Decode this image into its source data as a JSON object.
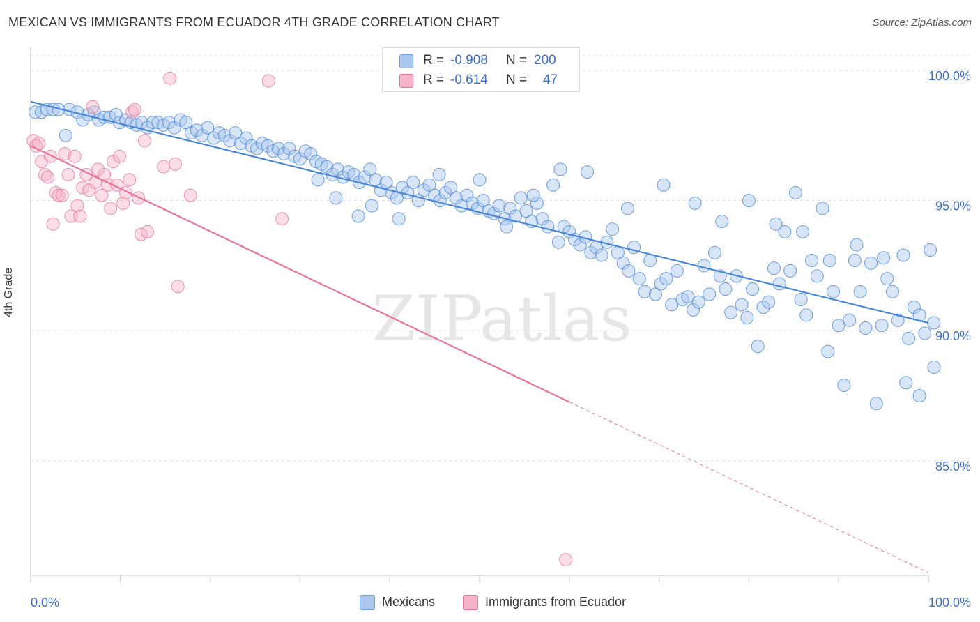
{
  "title": "MEXICAN VS IMMIGRANTS FROM ECUADOR 4TH GRADE CORRELATION CHART",
  "source": "Source: ZipAtlas.com",
  "watermark": "ZIPatlas",
  "stats": [
    {
      "r_label": "R =",
      "r_value": "-0.908",
      "n_label": "N =",
      "n_value": "200",
      "color": "#a9c6ee"
    },
    {
      "r_label": "R =",
      "r_value": "-0.614",
      "n_label": "N =",
      "n_value": "47",
      "color": "#f5b3c8"
    }
  ],
  "legend": [
    {
      "label": "Mexicans",
      "color": "#a9c6ee"
    },
    {
      "label": "Immigrants from Ecuador",
      "color": "#f5b3c8"
    }
  ],
  "colors": {
    "blue": "#4a86d8",
    "blue_fill": "#a9c6ee",
    "pink": "#e8739a",
    "pink_fill": "#f5b3c8",
    "tick_label": "#3d6fc9"
  },
  "chart_data": {
    "type": "scatter",
    "title": "MEXICAN VS IMMIGRANTS FROM ECUADOR 4TH GRADE CORRELATION CHART",
    "xlabel": "",
    "ylabel": "4th Grade",
    "xlim": [
      0,
      100
    ],
    "ylim": [
      80.6,
      101.1
    ],
    "x_tick_labels": [
      "0.0%",
      "100.0%"
    ],
    "y_ticks": [
      85,
      90,
      95,
      100
    ],
    "y_tick_labels": [
      "85.0%",
      "90.0%",
      "95.0%",
      "100.0%"
    ],
    "grid": true,
    "legend_position": "bottom-center",
    "series": [
      {
        "name": "Mexicans",
        "color": "#4a86d8",
        "trend": {
          "x": [
            0,
            100
          ],
          "y": [
            98.8,
            90.3
          ],
          "solid_to": 100
        },
        "points": [
          [
            0.5,
            98.4
          ],
          [
            1.2,
            98.4
          ],
          [
            1.8,
            98.5
          ],
          [
            2.5,
            98.5
          ],
          [
            3.1,
            98.5
          ],
          [
            3.9,
            97.5
          ],
          [
            4.3,
            98.5
          ],
          [
            5.2,
            98.4
          ],
          [
            5.8,
            98.1
          ],
          [
            6.4,
            98.3
          ],
          [
            7.1,
            98.4
          ],
          [
            7.6,
            98.1
          ],
          [
            8.2,
            98.2
          ],
          [
            8.8,
            98.2
          ],
          [
            9.5,
            98.3
          ],
          [
            9.9,
            98.0
          ],
          [
            10.6,
            98.1
          ],
          [
            11.2,
            98.0
          ],
          [
            11.8,
            97.9
          ],
          [
            12.4,
            98.0
          ],
          [
            13.0,
            97.8
          ],
          [
            13.6,
            98.0
          ],
          [
            14.2,
            98.0
          ],
          [
            14.8,
            97.9
          ],
          [
            15.4,
            98.0
          ],
          [
            16.0,
            97.8
          ],
          [
            16.7,
            98.1
          ],
          [
            17.3,
            98.0
          ],
          [
            17.9,
            97.6
          ],
          [
            18.5,
            97.7
          ],
          [
            19.1,
            97.5
          ],
          [
            19.7,
            97.8
          ],
          [
            20.4,
            97.4
          ],
          [
            21.0,
            97.6
          ],
          [
            21.6,
            97.5
          ],
          [
            22.2,
            97.3
          ],
          [
            22.8,
            97.6
          ],
          [
            23.4,
            97.2
          ],
          [
            24.0,
            97.4
          ],
          [
            24.6,
            97.1
          ],
          [
            25.2,
            97.0
          ],
          [
            25.8,
            97.2
          ],
          [
            26.4,
            97.1
          ],
          [
            27.0,
            96.9
          ],
          [
            27.6,
            97.0
          ],
          [
            28.2,
            96.8
          ],
          [
            28.8,
            97.0
          ],
          [
            29.4,
            96.7
          ],
          [
            30.0,
            96.6
          ],
          [
            30.6,
            96.9
          ],
          [
            31.2,
            96.8
          ],
          [
            31.8,
            96.5
          ],
          [
            32.4,
            96.4
          ],
          [
            33.0,
            96.3
          ],
          [
            33.6,
            96.0
          ],
          [
            34.2,
            96.2
          ],
          [
            34.8,
            95.9
          ],
          [
            35.4,
            96.1
          ],
          [
            36.0,
            96.0
          ],
          [
            36.6,
            95.7
          ],
          [
            37.2,
            95.9
          ],
          [
            37.8,
            96.2
          ],
          [
            38.4,
            95.8
          ],
          [
            39.0,
            95.4
          ],
          [
            39.6,
            95.7
          ],
          [
            40.2,
            95.3
          ],
          [
            40.8,
            95.1
          ],
          [
            41.4,
            95.5
          ],
          [
            42.0,
            95.3
          ],
          [
            42.6,
            95.7
          ],
          [
            43.2,
            95.0
          ],
          [
            43.8,
            95.4
          ],
          [
            44.4,
            95.6
          ],
          [
            45.0,
            95.2
          ],
          [
            45.6,
            95.0
          ],
          [
            46.2,
            95.3
          ],
          [
            46.8,
            95.5
          ],
          [
            47.4,
            95.1
          ],
          [
            48.0,
            94.8
          ],
          [
            48.6,
            95.2
          ],
          [
            49.2,
            94.9
          ],
          [
            49.8,
            94.7
          ],
          [
            50.4,
            95.0
          ],
          [
            51.0,
            94.6
          ],
          [
            51.6,
            94.5
          ],
          [
            52.2,
            94.8
          ],
          [
            52.8,
            94.3
          ],
          [
            53.4,
            94.7
          ],
          [
            54.0,
            94.4
          ],
          [
            54.6,
            95.1
          ],
          [
            55.2,
            94.6
          ],
          [
            55.8,
            94.2
          ],
          [
            56.4,
            94.9
          ],
          [
            57.0,
            94.3
          ],
          [
            57.6,
            94.0
          ],
          [
            58.2,
            95.6
          ],
          [
            58.8,
            93.4
          ],
          [
            59.4,
            94.0
          ],
          [
            60.0,
            93.8
          ],
          [
            60.6,
            93.5
          ],
          [
            61.2,
            93.3
          ],
          [
            61.8,
            93.6
          ],
          [
            62.4,
            93.0
          ],
          [
            63.0,
            93.2
          ],
          [
            63.6,
            92.9
          ],
          [
            64.2,
            93.4
          ],
          [
            64.8,
            93.9
          ],
          [
            65.4,
            93.0
          ],
          [
            66.0,
            92.6
          ],
          [
            66.6,
            92.3
          ],
          [
            67.2,
            93.2
          ],
          [
            67.8,
            92.0
          ],
          [
            68.4,
            91.5
          ],
          [
            69.0,
            92.7
          ],
          [
            69.6,
            91.4
          ],
          [
            70.2,
            91.8
          ],
          [
            70.8,
            92.0
          ],
          [
            71.4,
            91.0
          ],
          [
            72.0,
            92.3
          ],
          [
            72.6,
            91.2
          ],
          [
            73.2,
            91.3
          ],
          [
            73.8,
            90.8
          ],
          [
            74.4,
            91.1
          ],
          [
            75.0,
            92.5
          ],
          [
            75.6,
            91.4
          ],
          [
            76.2,
            93.0
          ],
          [
            76.8,
            92.1
          ],
          [
            77.4,
            91.6
          ],
          [
            78.0,
            90.7
          ],
          [
            78.6,
            92.1
          ],
          [
            79.2,
            91.0
          ],
          [
            79.8,
            90.5
          ],
          [
            80.4,
            91.6
          ],
          [
            81.0,
            89.4
          ],
          [
            81.6,
            90.9
          ],
          [
            82.2,
            91.1
          ],
          [
            82.8,
            92.4
          ],
          [
            83.4,
            91.8
          ],
          [
            84.0,
            93.8
          ],
          [
            84.6,
            92.3
          ],
          [
            85.2,
            95.3
          ],
          [
            85.8,
            91.2
          ],
          [
            86.4,
            90.6
          ],
          [
            87.0,
            92.7
          ],
          [
            87.6,
            92.1
          ],
          [
            88.2,
            94.7
          ],
          [
            88.8,
            89.2
          ],
          [
            89.4,
            91.5
          ],
          [
            90.0,
            90.2
          ],
          [
            90.6,
            87.9
          ],
          [
            91.2,
            90.4
          ],
          [
            91.8,
            92.7
          ],
          [
            92.4,
            91.5
          ],
          [
            93.0,
            90.1
          ],
          [
            93.6,
            92.6
          ],
          [
            94.2,
            87.2
          ],
          [
            94.8,
            90.2
          ],
          [
            95.4,
            92.0
          ],
          [
            96.0,
            91.5
          ],
          [
            96.6,
            90.4
          ],
          [
            97.2,
            92.9
          ],
          [
            97.8,
            89.7
          ],
          [
            98.4,
            90.9
          ],
          [
            99.0,
            90.6
          ],
          [
            99.6,
            89.9
          ],
          [
            100.2,
            93.1
          ],
          [
            100.6,
            90.3
          ],
          [
            32.0,
            95.8
          ],
          [
            34.0,
            95.1
          ],
          [
            36.5,
            94.4
          ],
          [
            38.0,
            94.8
          ],
          [
            41.0,
            94.3
          ],
          [
            45.5,
            96.0
          ],
          [
            50.0,
            95.8
          ],
          [
            53.0,
            94.0
          ],
          [
            56.0,
            95.2
          ],
          [
            59.0,
            96.2
          ],
          [
            62.0,
            96.1
          ],
          [
            66.5,
            94.7
          ],
          [
            70.5,
            95.6
          ],
          [
            74.0,
            94.9
          ],
          [
            77.0,
            94.2
          ],
          [
            80.0,
            95.0
          ],
          [
            83.0,
            94.1
          ],
          [
            86.0,
            93.8
          ],
          [
            89.0,
            92.7
          ],
          [
            92.0,
            93.3
          ],
          [
            95.0,
            92.8
          ],
          [
            97.5,
            88.0
          ],
          [
            99.0,
            87.5
          ],
          [
            102.0,
            88.6
          ]
        ]
      },
      {
        "name": "Immigrants from Ecuador",
        "color": "#e8739a",
        "trend": {
          "x": [
            0,
            100
          ],
          "y": [
            97.1,
            80.7
          ],
          "solid_to": 60
        },
        "points": [
          [
            0.3,
            97.3
          ],
          [
            0.6,
            97.1
          ],
          [
            0.9,
            97.2
          ],
          [
            1.2,
            96.5
          ],
          [
            1.6,
            96.0
          ],
          [
            1.9,
            95.9
          ],
          [
            2.2,
            96.7
          ],
          [
            2.5,
            94.1
          ],
          [
            2.8,
            95.3
          ],
          [
            3.1,
            95.2
          ],
          [
            3.5,
            95.2
          ],
          [
            3.8,
            96.8
          ],
          [
            4.2,
            96.0
          ],
          [
            4.5,
            94.4
          ],
          [
            4.9,
            96.7
          ],
          [
            5.2,
            94.8
          ],
          [
            5.5,
            94.4
          ],
          [
            5.8,
            95.5
          ],
          [
            6.2,
            96.0
          ],
          [
            6.5,
            95.4
          ],
          [
            6.9,
            98.6
          ],
          [
            7.2,
            95.7
          ],
          [
            7.5,
            96.2
          ],
          [
            7.9,
            95.2
          ],
          [
            8.2,
            96.0
          ],
          [
            8.6,
            95.6
          ],
          [
            8.9,
            94.7
          ],
          [
            9.2,
            96.5
          ],
          [
            9.6,
            95.6
          ],
          [
            9.9,
            96.7
          ],
          [
            10.3,
            94.9
          ],
          [
            10.6,
            95.3
          ],
          [
            11.0,
            95.8
          ],
          [
            11.3,
            98.4
          ],
          [
            11.6,
            98.5
          ],
          [
            12.0,
            95.1
          ],
          [
            12.3,
            93.7
          ],
          [
            12.7,
            97.3
          ],
          [
            13.0,
            93.8
          ],
          [
            14.8,
            96.3
          ],
          [
            15.5,
            99.7
          ],
          [
            16.1,
            96.4
          ],
          [
            16.4,
            91.7
          ],
          [
            17.8,
            95.2
          ],
          [
            26.5,
            99.6
          ],
          [
            28.0,
            94.3
          ],
          [
            59.6,
            81.2
          ]
        ]
      }
    ]
  }
}
